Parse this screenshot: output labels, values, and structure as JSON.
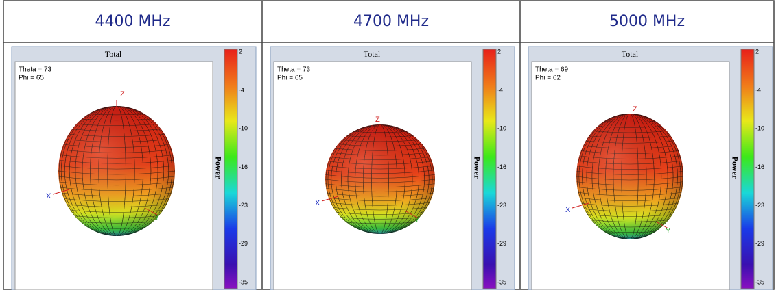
{
  "header": {
    "columns": [
      "4400 MHz",
      "4700 MHz",
      "5000 MHz"
    ]
  },
  "panels": [
    {
      "title": "Total",
      "theta": "Theta = 73",
      "phi": "Phi = 65",
      "axes": {
        "z": "Z",
        "x": "X",
        "y": "Y"
      },
      "colorbar": {
        "label": "Power",
        "ticks": [
          2,
          -4,
          -10,
          -16,
          -23,
          -29,
          -35
        ]
      }
    },
    {
      "title": "Total",
      "theta": "Theta = 73",
      "phi": "Phi = 65",
      "axes": {
        "z": "Z",
        "x": "X",
        "y": "Y"
      },
      "colorbar": {
        "label": "Power",
        "ticks": [
          2,
          -4,
          -10,
          -16,
          -23,
          -29,
          -35
        ]
      }
    },
    {
      "title": "Total",
      "theta": "Theta = 69",
      "phi": "Phi = 62",
      "axes": {
        "z": "Z",
        "x": "X",
        "y": "Y"
      },
      "colorbar": {
        "label": "Power",
        "ticks": [
          2,
          -4,
          -10,
          -16,
          -23,
          -29,
          -35
        ]
      }
    }
  ]
}
